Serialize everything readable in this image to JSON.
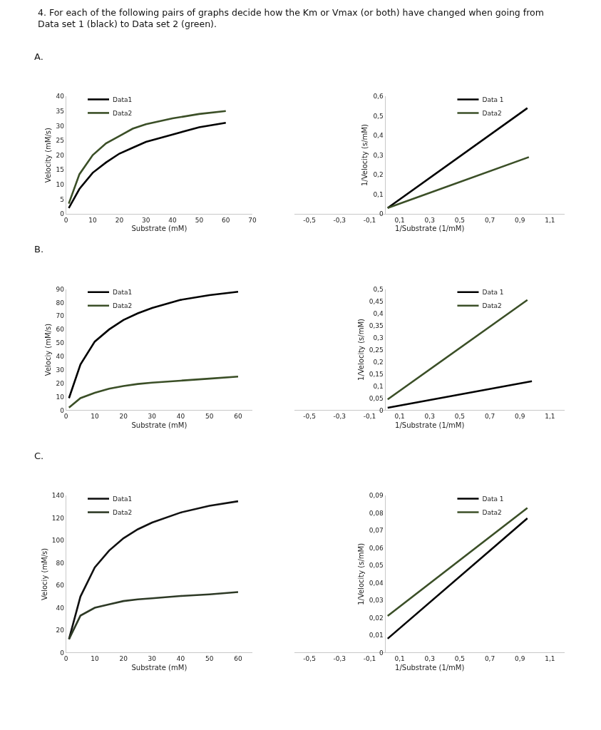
{
  "chart_data": [
    {
      "type": "line",
      "title": "A.",
      "annotations": [
        "4. For each of the following pairs of graphs decide how the Km or Vmax (or both) have changed when going from\nData set 1 (black) to Data set 2 (green)."
      ],
      "xlabel": "Substrate (mM)",
      "ylabel": "Velocity (mM/s)",
      "x": [
        1,
        5,
        10,
        15,
        20,
        25,
        30,
        40,
        50,
        60
      ],
      "xlim": [
        0,
        70
      ],
      "xticks": [
        0,
        10,
        20,
        30,
        40,
        50,
        60,
        70
      ],
      "ylim": [
        0,
        40
      ],
      "yticks": [
        0,
        5,
        10,
        15,
        20,
        25,
        30,
        35,
        40
      ],
      "grid": false,
      "legend": "top left",
      "marker": "none",
      "line_style": "solid",
      "series": [
        {
          "name": "Data1",
          "color": "#000000",
          "values": [
            2,
            8.5,
            14,
            17.5,
            20.5,
            22.5,
            24.5,
            27,
            29.5,
            31
          ]
        },
        {
          "name": "Data2",
          "color": "#3b4f27",
          "values": [
            3.5,
            13.5,
            20,
            24,
            26.5,
            29,
            30.5,
            32.5,
            34,
            35
          ]
        }
      ]
    },
    {
      "type": "line",
      "xlabel": "1/Substrate (1/mM)",
      "ylabel": "1/Velocity (s/mM)",
      "xlim": [
        -0.6,
        1.2
      ],
      "xticks": [
        {
          "value": -0.5,
          "label": "-0,5"
        },
        {
          "value": -0.3,
          "label": "-0,3"
        },
        {
          "value": -0.1,
          "label": "-0,1"
        },
        {
          "value": 0.1,
          "label": "0,1"
        },
        {
          "value": 0.3,
          "label": "0,3"
        },
        {
          "value": 0.5,
          "label": "0,5"
        },
        {
          "value": 0.7,
          "label": "0,7"
        },
        {
          "value": 0.9,
          "label": "0,9"
        },
        {
          "value": 1.1,
          "label": "1,1"
        }
      ],
      "ylim": [
        0,
        0.6
      ],
      "yticks": [
        0,
        {
          "value": 0.1,
          "label": "0,1"
        },
        {
          "value": 0.2,
          "label": "0,2"
        },
        {
          "value": 0.3,
          "label": "0,3"
        },
        {
          "value": 0.4,
          "label": "0,4"
        },
        {
          "value": 0.5,
          "label": "0,5"
        },
        {
          "value": 0.6,
          "label": "0,6"
        }
      ],
      "grid": false,
      "legend": "top",
      "marker": "none",
      "line_style": "solid",
      "series": [
        {
          "name": "Data 1",
          "color": "#000000",
          "x": [
            0.02,
            0.95
          ],
          "values": [
            0.03,
            0.54
          ]
        },
        {
          "name": "Data2",
          "color": "#3b4f27",
          "x": [
            0.02,
            0.96
          ],
          "values": [
            0.03,
            0.29
          ]
        }
      ]
    },
    {
      "type": "line",
      "title": "B.",
      "xlabel": "Substrate (mM)",
      "ylabel": "Velociy (mM/s)",
      "x": [
        1,
        5,
        10,
        15,
        20,
        25,
        30,
        40,
        50,
        60
      ],
      "xlim": [
        0,
        65
      ],
      "xticks": [
        0,
        10,
        20,
        30,
        40,
        50,
        60
      ],
      "ylim": [
        0,
        90
      ],
      "yticks": [
        0,
        10,
        20,
        30,
        40,
        50,
        60,
        70,
        80,
        90
      ],
      "grid": false,
      "legend": "top left",
      "marker": "none",
      "line_style": "solid",
      "series": [
        {
          "name": "Data1",
          "color": "#000000",
          "values": [
            9,
            34,
            51,
            60,
            67,
            72,
            76,
            82,
            85.5,
            88
          ]
        },
        {
          "name": "Data2",
          "color": "#3b4f27",
          "values": [
            2,
            9,
            13,
            16,
            18,
            19.5,
            20.5,
            22,
            23.5,
            25
          ]
        }
      ]
    },
    {
      "type": "line",
      "xlabel": "1/Substrate (1/mM)",
      "ylabel": "1/Velocity (s/mM)",
      "xlim": [
        -0.6,
        1.2
      ],
      "xticks": [
        {
          "value": -0.5,
          "label": "-0,5"
        },
        {
          "value": -0.3,
          "label": "-0,3"
        },
        {
          "value": -0.1,
          "label": "-0,1"
        },
        {
          "value": 0.1,
          "label": "0,1"
        },
        {
          "value": 0.3,
          "label": "0,3"
        },
        {
          "value": 0.5,
          "label": "0,5"
        },
        {
          "value": 0.7,
          "label": "0,7"
        },
        {
          "value": 0.9,
          "label": "0,9"
        },
        {
          "value": 1.1,
          "label": "1,1"
        }
      ],
      "ylim": [
        0,
        0.5
      ],
      "yticks": [
        0,
        {
          "value": 0.05,
          "label": "0,05"
        },
        {
          "value": 0.1,
          "label": "0,1"
        },
        {
          "value": 0.15,
          "label": "0,15"
        },
        {
          "value": 0.2,
          "label": "0,2"
        },
        {
          "value": 0.25,
          "label": "0,25"
        },
        {
          "value": 0.3,
          "label": "0,3"
        },
        {
          "value": 0.35,
          "label": "0,35"
        },
        {
          "value": 0.4,
          "label": "0,4"
        },
        {
          "value": 0.45,
          "label": "0,45"
        },
        {
          "value": 0.5,
          "label": "0,5"
        }
      ],
      "grid": false,
      "legend": "top",
      "marker": "none",
      "line_style": "solid",
      "series": [
        {
          "name": "Data 1",
          "color": "#000000",
          "x": [
            0.02,
            0.98
          ],
          "values": [
            0.01,
            0.12
          ]
        },
        {
          "name": "Data2",
          "color": "#3b4f27",
          "x": [
            0.02,
            0.95
          ],
          "values": [
            0.045,
            0.455
          ]
        }
      ]
    },
    {
      "type": "line",
      "title": "C.",
      "xlabel": "Substrate (mM)",
      "ylabel": "Velociy (mM/s)",
      "x": [
        1,
        5,
        10,
        15,
        20,
        25,
        30,
        40,
        50,
        60
      ],
      "xlim": [
        0,
        65
      ],
      "xticks": [
        0,
        10,
        20,
        30,
        40,
        50,
        60
      ],
      "ylim": [
        0,
        140
      ],
      "yticks": [
        0,
        20,
        40,
        60,
        80,
        100,
        120,
        140
      ],
      "grid": false,
      "legend": "top left",
      "marker": "none",
      "line_style": "solid",
      "series": [
        {
          "name": "Data1",
          "color": "#111111",
          "values": [
            12,
            50,
            76,
            91,
            102,
            110,
            116,
            125,
            131,
            135
          ]
        },
        {
          "name": "Data2",
          "color": "#2e3a26",
          "values": [
            12,
            33,
            40,
            43,
            46,
            47.5,
            48.5,
            50.5,
            52,
            54
          ]
        }
      ]
    },
    {
      "type": "line",
      "xlabel": "1/Substrate (1/mM)",
      "ylabel": "1/Velocity (s/mM)",
      "xlim": [
        -0.6,
        1.2
      ],
      "xticks": [
        {
          "value": -0.5,
          "label": "-0,5"
        },
        {
          "value": -0.3,
          "label": "-0,3"
        },
        {
          "value": -0.1,
          "label": "-0,1"
        },
        {
          "value": 0.1,
          "label": "0,1"
        },
        {
          "value": 0.3,
          "label": "0,3"
        },
        {
          "value": 0.5,
          "label": "0,5"
        },
        {
          "value": 0.7,
          "label": "0,7"
        },
        {
          "value": 0.9,
          "label": "0,9"
        },
        {
          "value": 1.1,
          "label": "1,1"
        }
      ],
      "ylim": [
        0,
        0.09
      ],
      "yticks": [
        0,
        {
          "value": 0.01,
          "label": "0,01"
        },
        {
          "value": 0.02,
          "label": "0,02"
        },
        {
          "value": 0.03,
          "label": "0,03"
        },
        {
          "value": 0.04,
          "label": "0,04"
        },
        {
          "value": 0.05,
          "label": "0,05"
        },
        {
          "value": 0.06,
          "label": "0,06"
        },
        {
          "value": 0.07,
          "label": "0,07"
        },
        {
          "value": 0.08,
          "label": "0,08"
        },
        {
          "value": 0.09,
          "label": "0,09"
        }
      ],
      "grid": false,
      "legend": "top",
      "marker": "none",
      "line_style": "solid",
      "series": [
        {
          "name": "Data 1",
          "color": "#000000",
          "x": [
            0.02,
            0.95
          ],
          "values": [
            0.008,
            0.077
          ]
        },
        {
          "name": "Data2",
          "color": "#3b4f27",
          "x": [
            0.02,
            0.95
          ],
          "values": [
            0.021,
            0.083
          ]
        }
      ]
    }
  ]
}
